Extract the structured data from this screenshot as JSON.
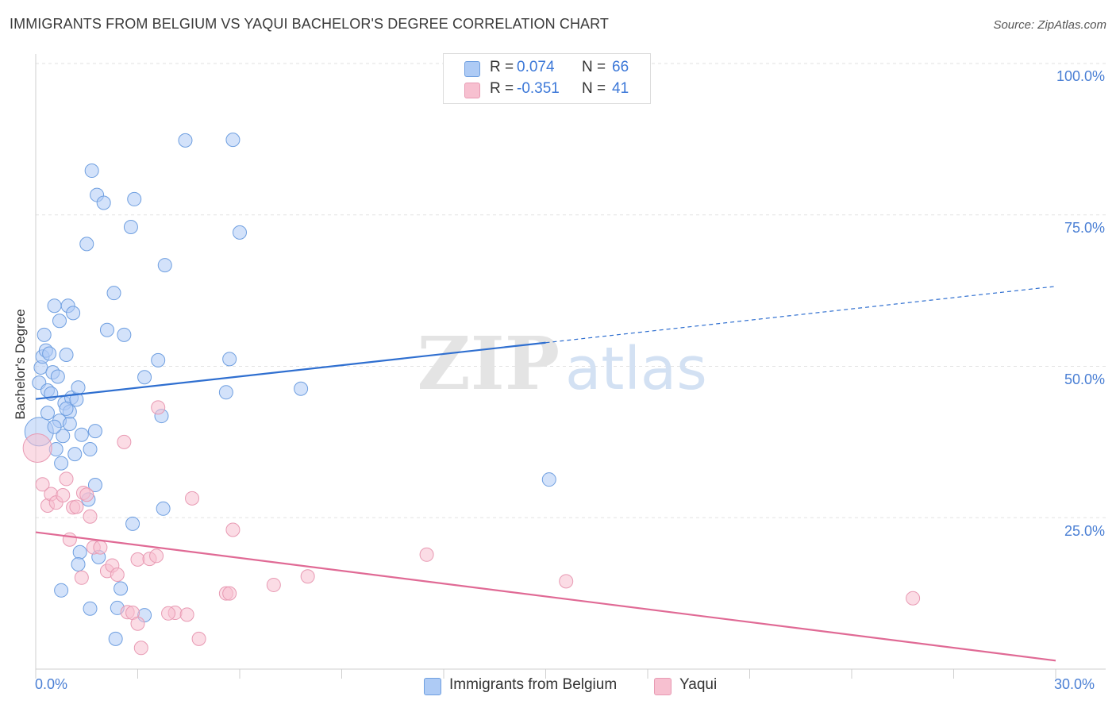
{
  "header": {
    "title": "IMMIGRANTS FROM BELGIUM VS YAQUI BACHELOR'S DEGREE CORRELATION CHART",
    "source": "Source: ZipAtlas.com"
  },
  "watermark": {
    "zip": "ZIP",
    "atlas": "atlas"
  },
  "legend_top": [
    {
      "r_label": "R =",
      "r_value": "0.074",
      "n_label": "N =",
      "n_value": "66",
      "color": "#aecbf5"
    },
    {
      "r_label": "R =",
      "r_value": "-0.351",
      "n_label": "N =",
      "n_value": "41",
      "color": "#f7c0d0"
    }
  ],
  "legend_bottom": [
    {
      "label": "Immigrants from Belgium",
      "color": "#aecbf5"
    },
    {
      "label": "Yaqui",
      "color": "#f7c0d0"
    }
  ],
  "chart_data": {
    "type": "scatter",
    "title": "IMMIGRANTS FROM BELGIUM VS YAQUI BACHELOR'S DEGREE CORRELATION CHART",
    "xlabel": "",
    "ylabel": "Bachelor's Degree",
    "xlim": [
      0,
      30
    ],
    "ylim": [
      0,
      100
    ],
    "x_tick_labels": [
      "0.0%",
      "30.0%"
    ],
    "y_tick_labels": [
      "25.0%",
      "50.0%",
      "75.0%",
      "100.0%"
    ],
    "y_ticks": [
      25,
      50,
      75,
      100
    ],
    "grid": true,
    "legend_placement": "top-center",
    "series": [
      {
        "name": "Immigrants from Belgium",
        "color": "#aecbf5",
        "edge_color": "#6f9fe0",
        "line_color": "#2f6fd0",
        "trend": {
          "x0": 0,
          "y0": 44.6,
          "x1": 15,
          "y1": 53.9,
          "dashed_to_x": 30,
          "dashed_to_y": 63.2
        },
        "points": [
          [
            0.1,
            39.2
          ],
          [
            0.1,
            47.3
          ],
          [
            0.15,
            49.8
          ],
          [
            0.2,
            51.6
          ],
          [
            0.25,
            55.2
          ],
          [
            0.3,
            52.6
          ],
          [
            0.35,
            46.0
          ],
          [
            0.4,
            52.1
          ],
          [
            0.5,
            49.0
          ],
          [
            0.55,
            60.0
          ],
          [
            0.6,
            36.3
          ],
          [
            0.65,
            48.3
          ],
          [
            0.7,
            57.5
          ],
          [
            0.7,
            41.0
          ],
          [
            0.75,
            34.0
          ],
          [
            0.8,
            38.5
          ],
          [
            0.85,
            43.9
          ],
          [
            0.9,
            51.9
          ],
          [
            0.95,
            60.0
          ],
          [
            1.0,
            42.5
          ],
          [
            1.05,
            44.8
          ],
          [
            1.1,
            58.8
          ],
          [
            1.15,
            35.5
          ],
          [
            1.2,
            44.5
          ],
          [
            1.25,
            46.5
          ],
          [
            1.35,
            38.7
          ],
          [
            1.5,
            70.2
          ],
          [
            1.6,
            36.3
          ],
          [
            1.65,
            82.3
          ],
          [
            1.75,
            39.3
          ],
          [
            1.8,
            78.3
          ],
          [
            2.0,
            77.0
          ],
          [
            2.1,
            56.0
          ],
          [
            2.3,
            62.1
          ],
          [
            2.6,
            55.2
          ],
          [
            2.8,
            73.0
          ],
          [
            2.9,
            77.6
          ],
          [
            3.2,
            48.2
          ],
          [
            3.6,
            51.0
          ],
          [
            3.8,
            66.7
          ],
          [
            4.4,
            87.3
          ],
          [
            5.8,
            87.4
          ],
          [
            6.0,
            72.1
          ],
          [
            5.7,
            51.2
          ],
          [
            5.6,
            45.7
          ],
          [
            7.8,
            46.3
          ],
          [
            0.55,
            40.0
          ],
          [
            0.9,
            43.0
          ],
          [
            1.75,
            30.4
          ],
          [
            1.55,
            28.0
          ],
          [
            2.85,
            24.0
          ],
          [
            3.75,
            26.5
          ],
          [
            3.7,
            41.8
          ],
          [
            1.3,
            19.3
          ],
          [
            1.25,
            17.3
          ],
          [
            0.75,
            13.0
          ],
          [
            2.5,
            13.3
          ],
          [
            1.6,
            10.0
          ],
          [
            2.4,
            10.1
          ],
          [
            3.2,
            8.9
          ],
          [
            2.35,
            5.0
          ],
          [
            1.0,
            40.5
          ],
          [
            0.35,
            42.3
          ],
          [
            15.1,
            31.3
          ],
          [
            1.85,
            18.5
          ],
          [
            0.45,
            45.5
          ]
        ]
      },
      {
        "name": "Yaqui",
        "color": "#f7c0d0",
        "edge_color": "#e89ab3",
        "line_color": "#e06a95",
        "trend": {
          "x0": 0,
          "y0": 22.6,
          "x1": 30,
          "y1": 1.4
        },
        "points": [
          [
            0.05,
            36.5
          ],
          [
            0.2,
            30.5
          ],
          [
            0.35,
            27.0
          ],
          [
            0.45,
            28.9
          ],
          [
            0.6,
            27.5
          ],
          [
            0.8,
            28.7
          ],
          [
            0.9,
            31.4
          ],
          [
            1.0,
            21.4
          ],
          [
            1.1,
            26.7
          ],
          [
            1.2,
            26.8
          ],
          [
            1.35,
            15.1
          ],
          [
            1.4,
            29.1
          ],
          [
            1.5,
            28.8
          ],
          [
            1.6,
            25.2
          ],
          [
            1.7,
            20.1
          ],
          [
            1.9,
            20.1
          ],
          [
            2.1,
            16.2
          ],
          [
            2.25,
            17.1
          ],
          [
            2.4,
            15.6
          ],
          [
            2.7,
            9.4
          ],
          [
            2.85,
            9.3
          ],
          [
            3.0,
            7.5
          ],
          [
            3.1,
            3.5
          ],
          [
            3.0,
            18.1
          ],
          [
            3.35,
            18.2
          ],
          [
            3.55,
            18.7
          ],
          [
            3.6,
            43.2
          ],
          [
            4.1,
            9.3
          ],
          [
            3.9,
            9.2
          ],
          [
            4.45,
            9.0
          ],
          [
            4.6,
            28.2
          ],
          [
            4.8,
            5.0
          ],
          [
            5.6,
            12.5
          ],
          [
            5.7,
            12.5
          ],
          [
            5.8,
            23.0
          ],
          [
            7.0,
            13.9
          ],
          [
            8.0,
            15.3
          ],
          [
            11.5,
            18.9
          ],
          [
            2.6,
            37.5
          ],
          [
            15.6,
            14.5
          ],
          [
            25.8,
            11.7
          ]
        ]
      }
    ]
  }
}
